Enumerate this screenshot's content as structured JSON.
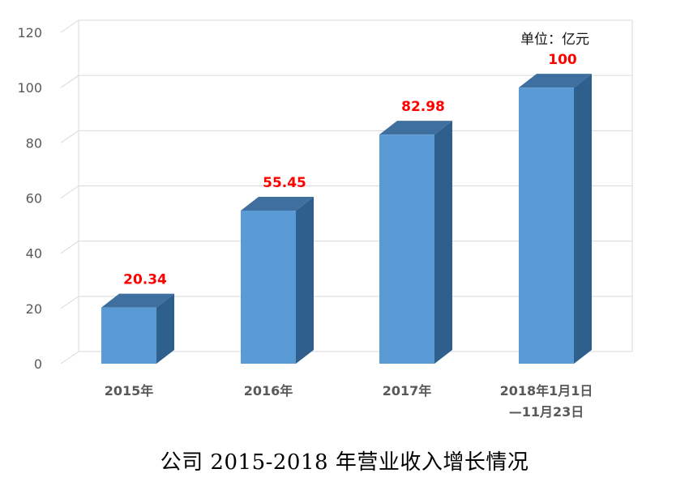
{
  "chart_data": {
    "type": "bar",
    "title": "公司 2015-2018 年营业收入增长情况",
    "unit_label": "单位：亿元",
    "categories": [
      [
        "2015年"
      ],
      [
        "2016年"
      ],
      [
        "2017年"
      ],
      [
        "2018年1月1日",
        "—11月23日"
      ]
    ],
    "values": [
      20.34,
      55.45,
      82.98,
      100
    ],
    "value_labels": [
      "20.34",
      "55.45",
      "82.98",
      "100"
    ],
    "ylim": [
      0,
      120
    ],
    "yticks": [
      0,
      20,
      40,
      60,
      80,
      100,
      120
    ],
    "grid": true,
    "bar_3d": true,
    "colors": {
      "bar_front": "#5b9bd5",
      "bar_top": "#3e6f9f",
      "bar_side": "#2f5f8c",
      "value_label": "#ff0000",
      "grid": "#d9d9d9",
      "axis_text": "#595959"
    }
  }
}
